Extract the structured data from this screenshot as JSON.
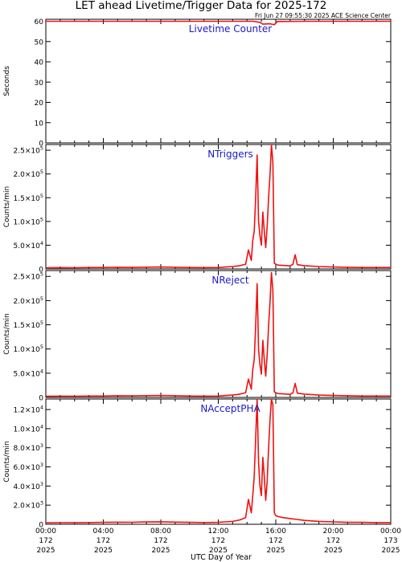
{
  "title": "LET ahead Livetime/Trigger Data for 2025-172",
  "subtitle": "Fri Jun 27 09:55:30 2025 ACE Science Center",
  "xlabel": "UTC Day of Year",
  "colors": {
    "series": "#ee1111",
    "panel_title": "#1a1acc",
    "axes": "#000000"
  },
  "x_ticks": [
    {
      "time": "00:00",
      "doy": "172",
      "year": "2025",
      "hour": 0
    },
    {
      "time": "04:00",
      "doy": "172",
      "year": "2025",
      "hour": 4
    },
    {
      "time": "08:00",
      "doy": "172",
      "year": "2025",
      "hour": 8
    },
    {
      "time": "12:00",
      "doy": "172",
      "year": "2025",
      "hour": 12
    },
    {
      "time": "16:00",
      "doy": "172",
      "year": "2025",
      "hour": 16
    },
    {
      "time": "20:00",
      "doy": "172",
      "year": "2025",
      "hour": 20
    },
    {
      "time": "00:00",
      "doy": "173",
      "year": "2025",
      "hour": 24
    }
  ],
  "chart_data": [
    {
      "type": "line",
      "title": "Livetime Counter",
      "ylabel": "Seconds",
      "xlim": [
        0,
        24
      ],
      "ylim": [
        0,
        61
      ],
      "yticks": [
        {
          "v": 0,
          "m": "0"
        },
        {
          "v": 10,
          "m": "10"
        },
        {
          "v": 20,
          "m": "20"
        },
        {
          "v": 30,
          "m": "30"
        },
        {
          "v": 40,
          "m": "40"
        },
        {
          "v": 50,
          "m": "50"
        },
        {
          "v": 60,
          "m": "60"
        }
      ],
      "series": [
        {
          "x": [
            0,
            4,
            8,
            12,
            14.4,
            14.9,
            15.1,
            15.6,
            15.9,
            16.1,
            18,
            20,
            24
          ],
          "y": [
            60,
            60,
            60,
            60,
            60,
            59.5,
            58.6,
            58.8,
            58.3,
            59.9,
            60,
            60,
            60
          ]
        }
      ]
    },
    {
      "type": "line",
      "title": "NTriggers",
      "ylabel": "Counts/min",
      "xlim": [
        0,
        24
      ],
      "ylim": [
        0,
        262000
      ],
      "yticks": [
        {
          "v": 0,
          "m": "0",
          "e": ""
        },
        {
          "v": 50000,
          "m": "5.0×10",
          "e": "4"
        },
        {
          "v": 100000,
          "m": "1.0×10",
          "e": "5"
        },
        {
          "v": 150000,
          "m": "1.5×10",
          "e": "5"
        },
        {
          "v": 200000,
          "m": "2.0×10",
          "e": "5"
        },
        {
          "v": 250000,
          "m": "2.5×10",
          "e": "5"
        }
      ],
      "series": [
        {
          "x": [
            0,
            1,
            2,
            3,
            4,
            5,
            6,
            7,
            8,
            9,
            10,
            11,
            12,
            12.5,
            13,
            13.5,
            13.9,
            14.1,
            14.3,
            14.4,
            14.5,
            14.6,
            14.7,
            14.8,
            14.9,
            15.0,
            15.1,
            15.2,
            15.3,
            15.4,
            15.5,
            15.6,
            15.7,
            15.8,
            15.9,
            16.0,
            16.1,
            16.2,
            16.5,
            17.0,
            17.2,
            17.35,
            17.5,
            18,
            19,
            20,
            21,
            22,
            23,
            24
          ],
          "y": [
            2500,
            2800,
            2600,
            3000,
            3000,
            3500,
            3200,
            3800,
            4000,
            3500,
            3000,
            2800,
            3000,
            4000,
            5000,
            7000,
            10000,
            40000,
            18000,
            60000,
            80000,
            150000,
            240000,
            100000,
            70000,
            50000,
            120000,
            80000,
            45000,
            90000,
            150000,
            200000,
            262000,
            225000,
            12000,
            10000,
            9000,
            8000,
            7500,
            6500,
            10000,
            30000,
            9000,
            7000,
            5000,
            4000,
            3500,
            3000,
            3000,
            3000
          ]
        }
      ]
    },
    {
      "type": "line",
      "title": "NReject",
      "ylabel": "Counts/min",
      "xlim": [
        0,
        24
      ],
      "ylim": [
        0,
        262000
      ],
      "yticks": [
        {
          "v": 0,
          "m": "0",
          "e": ""
        },
        {
          "v": 50000,
          "m": "5.0×10",
          "e": "4"
        },
        {
          "v": 100000,
          "m": "1.0×10",
          "e": "5"
        },
        {
          "v": 150000,
          "m": "1.5×10",
          "e": "5"
        },
        {
          "v": 200000,
          "m": "2.0×10",
          "e": "5"
        },
        {
          "v": 250000,
          "m": "2.5×10",
          "e": "5"
        }
      ],
      "series": [
        {
          "x": [
            0,
            1,
            2,
            3,
            4,
            5,
            6,
            7,
            8,
            9,
            10,
            11,
            12,
            12.5,
            13,
            13.5,
            13.9,
            14.1,
            14.3,
            14.4,
            14.5,
            14.6,
            14.7,
            14.8,
            14.9,
            15.0,
            15.1,
            15.2,
            15.3,
            15.4,
            15.5,
            15.6,
            15.7,
            15.8,
            15.9,
            16.0,
            16.1,
            16.2,
            16.5,
            17.0,
            17.2,
            17.35,
            17.5,
            18,
            19,
            20,
            21,
            22,
            23,
            24
          ],
          "y": [
            2400,
            2700,
            2500,
            2900,
            2900,
            3400,
            3100,
            3700,
            3900,
            3400,
            2900,
            2700,
            2900,
            3900,
            4800,
            6800,
            9800,
            38000,
            17000,
            58000,
            78000,
            148000,
            235000,
            98000,
            68000,
            48000,
            118000,
            78000,
            44000,
            88000,
            148000,
            198000,
            258000,
            222000,
            11500,
            9800,
            8800,
            7800,
            7300,
            6300,
            9800,
            29000,
            8800,
            6800,
            4800,
            3900,
            3400,
            2900,
            2900,
            2900
          ]
        }
      ]
    },
    {
      "type": "line",
      "title": "NAcceptPHA",
      "ylabel": "Counts/min",
      "xlim": [
        0,
        24
      ],
      "ylim": [
        0,
        13100
      ],
      "yticks": [
        {
          "v": 0,
          "m": "0",
          "e": ""
        },
        {
          "v": 2000,
          "m": "2.0×10",
          "e": "3"
        },
        {
          "v": 4000,
          "m": "4.0×10",
          "e": "3"
        },
        {
          "v": 6000,
          "m": "6.0×10",
          "e": "3"
        },
        {
          "v": 8000,
          "m": "8.0×10",
          "e": "3"
        },
        {
          "v": 10000,
          "m": "1.0×10",
          "e": "4"
        },
        {
          "v": 12000,
          "m": "1.2×10",
          "e": "4"
        }
      ],
      "series": [
        {
          "x": [
            0,
            1,
            2,
            3,
            4,
            5,
            6,
            7,
            8,
            9,
            10,
            11,
            12,
            12.5,
            13,
            13.5,
            13.9,
            14.1,
            14.3,
            14.4,
            14.5,
            14.6,
            14.7,
            14.8,
            14.9,
            15.0,
            15.1,
            15.2,
            15.3,
            15.4,
            15.5,
            15.6,
            15.7,
            15.8,
            15.9,
            16.0,
            16.2,
            16.5,
            17.0,
            17.5,
            18,
            19,
            20,
            21,
            22,
            23,
            24
          ],
          "y": [
            150,
            170,
            160,
            180,
            200,
            220,
            210,
            240,
            260,
            230,
            200,
            180,
            200,
            250,
            300,
            450,
            700,
            2600,
            1200,
            3000,
            5000,
            9000,
            13100,
            6500,
            4000,
            3000,
            7000,
            5000,
            2500,
            4500,
            8000,
            11000,
            13100,
            12500,
            1200,
            900,
            800,
            700,
            600,
            500,
            400,
            300,
            250,
            200,
            200,
            180,
            180
          ]
        }
      ]
    }
  ]
}
